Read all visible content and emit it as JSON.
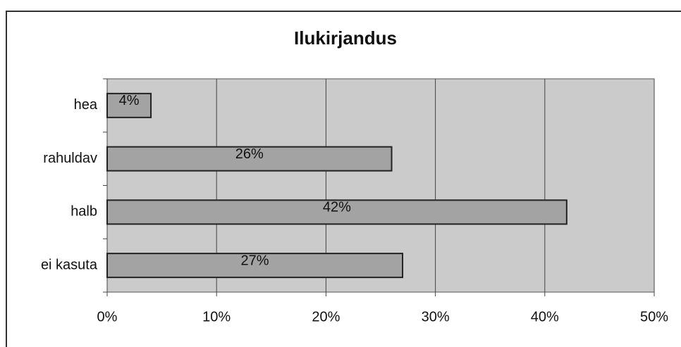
{
  "chart_data": {
    "type": "bar",
    "orientation": "horizontal",
    "title": "Ilukirjandus",
    "categories": [
      "hea",
      "rahuldav",
      "halb",
      "ei kasuta"
    ],
    "values": [
      4,
      26,
      42,
      27
    ],
    "value_labels": [
      "4%",
      "26%",
      "42%",
      "27%"
    ],
    "color": "#a3a3a3",
    "xlim": [
      0,
      50
    ],
    "xticks": [
      {
        "value": 0,
        "label": "0%"
      },
      {
        "value": 10,
        "label": "10%"
      },
      {
        "value": 20,
        "label": "20%"
      },
      {
        "value": 30,
        "label": "30%"
      },
      {
        "value": 40,
        "label": "40%"
      },
      {
        "value": 50,
        "label": "50%"
      }
    ],
    "grid": true
  }
}
